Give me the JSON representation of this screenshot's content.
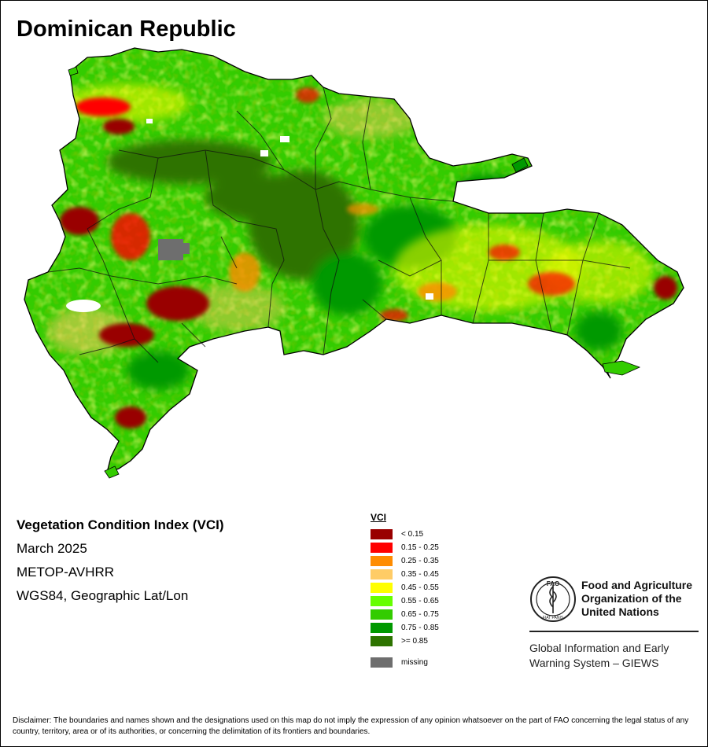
{
  "title": "Dominican Republic",
  "info": {
    "product": "Vegetation Condition Index (VCI)",
    "date": "March 2025",
    "sensor": "METOP-AVHRR",
    "projection": "WGS84, Geographic Lat/Lon"
  },
  "legend": {
    "title": "VCI",
    "items": [
      {
        "label": "< 0.15",
        "color": "#990000"
      },
      {
        "label": "0.15 - 0.25",
        "color": "#ff0000"
      },
      {
        "label": "0.25 - 0.35",
        "color": "#ff8c00"
      },
      {
        "label": "0.35 - 0.45",
        "color": "#ffcc66"
      },
      {
        "label": "0.45 - 0.55",
        "color": "#ffff00"
      },
      {
        "label": "0.55 - 0.65",
        "color": "#66ff00"
      },
      {
        "label": "0.65 - 0.75",
        "color": "#33cc00"
      },
      {
        "label": "0.75 - 0.85",
        "color": "#009900"
      },
      {
        "label": ">= 0.85",
        "color": "#2d7300"
      }
    ],
    "missing": {
      "label": "missing",
      "color": "#6e6e6e"
    }
  },
  "fao": {
    "name_lines": [
      "Food and Agriculture",
      "Organization of the",
      "United Nations"
    ],
    "logo_letters": "FAO",
    "logo_motto": "FIAT PANIS"
  },
  "giews": {
    "lines": [
      "Global Information and Early",
      "Warning System – GIEWS"
    ]
  },
  "disclaimer": "Disclaimer: The boundaries and names shown and the designations used on this map do not imply the expression of any opinion whatsoever on the part of FAO concerning the legal status of any country, territory, area or of its authorities, or concerning the delimitation of its frontiers and boundaries."
}
